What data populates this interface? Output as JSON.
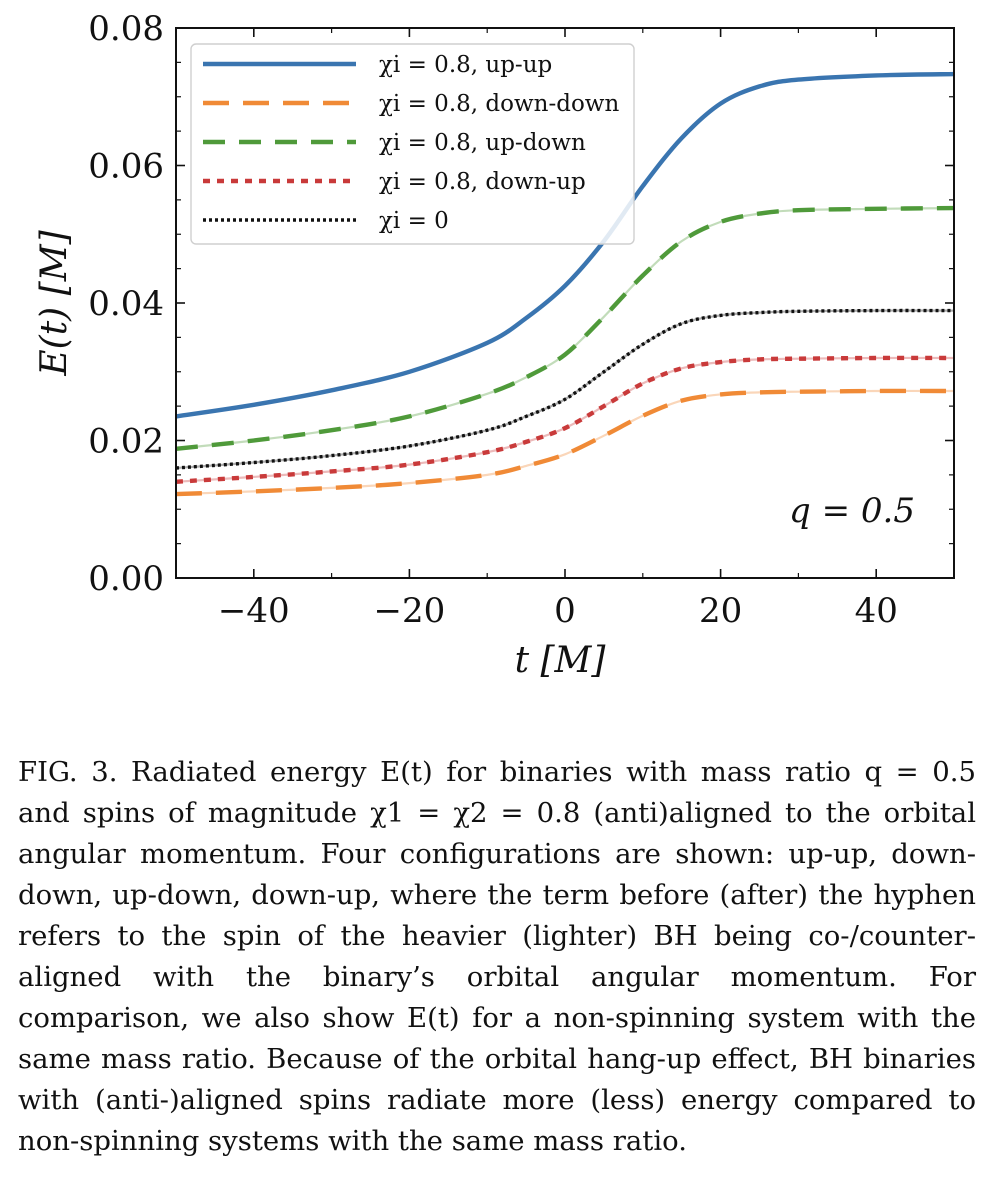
{
  "chart_data": {
    "type": "line",
    "xlabel": "t  [M]",
    "ylabel": "E(t)  [M]",
    "xlim": [
      -50,
      50
    ],
    "ylim": [
      0.0,
      0.08
    ],
    "x_ticks": [
      "−40",
      "−20",
      "0",
      "20",
      "40"
    ],
    "x_tick_values": [
      -40,
      -20,
      0,
      20,
      40
    ],
    "y_ticks": [
      "0.00",
      "0.02",
      "0.04",
      "0.06",
      "0.08"
    ],
    "y_tick_values": [
      0.0,
      0.02,
      0.04,
      0.06,
      0.08
    ],
    "legend_position": "top-left",
    "annotation": "q = 0.5",
    "x": [
      -50,
      -40,
      -30,
      -20,
      -10,
      -5,
      0,
      5,
      10,
      15,
      20,
      25,
      30,
      40,
      50
    ],
    "series": [
      {
        "name": "χi = 0.8, up-up",
        "color": "#3a75b0",
        "style": "solid",
        "values": [
          0.0235,
          0.0252,
          0.0273,
          0.03,
          0.0342,
          0.0378,
          0.0425,
          0.049,
          0.057,
          0.064,
          0.069,
          0.0715,
          0.0725,
          0.0731,
          0.0733
        ]
      },
      {
        "name": "χi = 0.8, down-down",
        "color": "#f08a36",
        "style": "longdash",
        "values": [
          0.0122,
          0.0126,
          0.0131,
          0.0138,
          0.015,
          0.0163,
          0.018,
          0.0207,
          0.0236,
          0.0258,
          0.0267,
          0.027,
          0.0271,
          0.0272,
          0.0272
        ]
      },
      {
        "name": "χi = 0.8, up-down",
        "color": "#4f9a3a",
        "style": "dash",
        "values": [
          0.0188,
          0.02,
          0.0215,
          0.0235,
          0.0268,
          0.0292,
          0.0325,
          0.038,
          0.044,
          0.049,
          0.0518,
          0.053,
          0.0535,
          0.0537,
          0.0538
        ]
      },
      {
        "name": "χi = 0.8, down-up",
        "color": "#c93a3a",
        "style": "dotted",
        "values": [
          0.014,
          0.0147,
          0.0155,
          0.0165,
          0.0183,
          0.0198,
          0.0218,
          0.025,
          0.0283,
          0.0305,
          0.0314,
          0.0318,
          0.0319,
          0.032,
          0.032
        ]
      },
      {
        "name": "χi = 0",
        "color": "#111111",
        "style": "finedotted",
        "values": [
          0.016,
          0.0168,
          0.0178,
          0.0192,
          0.0215,
          0.0235,
          0.026,
          0.03,
          0.034,
          0.037,
          0.0382,
          0.0386,
          0.0388,
          0.0389,
          0.0389
        ]
      }
    ]
  },
  "caption": "FIG. 3.  Radiated energy E(t) for binaries with mass ratio q = 0.5 and spins of magnitude χ1 = χ2 = 0.8 (anti)aligned to the orbital angular momentum. Four configurations are shown: up-up, down-down, up-down, down-up, where the term before (after) the hyphen refers to the spin of the heavier (lighter) BH being co-/counter-aligned with the binary’s orbital angular momentum.  For comparison, we also show E(t) for a non-spinning system with the same mass ratio.  Because of the orbital hang-up effect, BH binaries with (anti-)aligned spins radiate more (less) energy compared to non-spinning systems with the same mass ratio."
}
